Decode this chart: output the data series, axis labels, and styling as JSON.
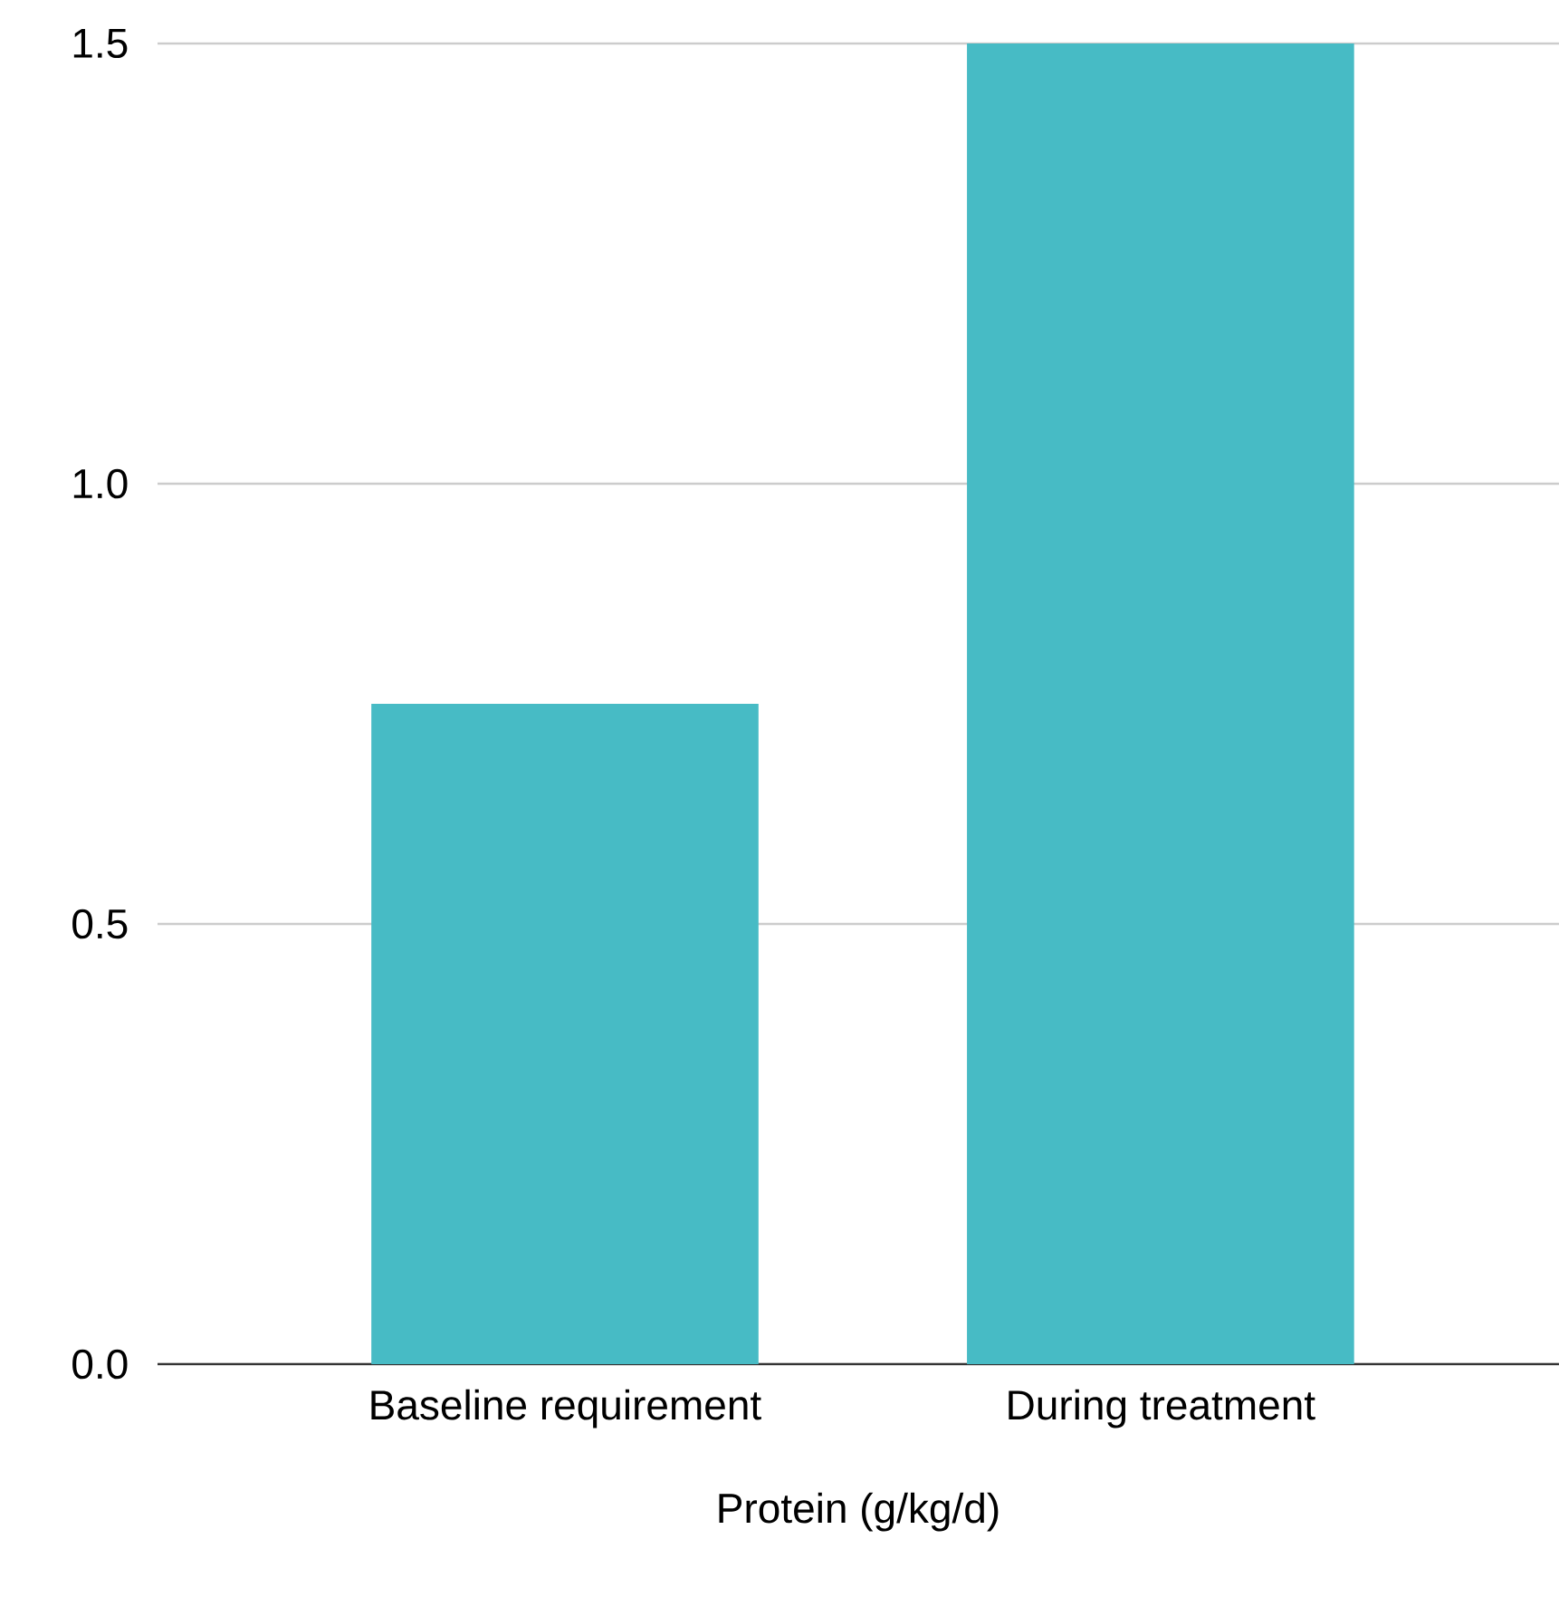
{
  "chart_data": {
    "type": "bar",
    "xlabel": "Protein (g/kg/d)",
    "categories": [
      "Baseline requirement",
      "During treatment"
    ],
    "values": [
      0.75,
      1.5
    ],
    "color": "#47bbc5",
    "ylim": [
      0,
      1.5
    ],
    "yticks": [
      {
        "value": 0,
        "label": "0.0"
      },
      {
        "value": 0.5,
        "label": "0.5"
      },
      {
        "value": 1,
        "label": "1.0"
      },
      {
        "value": 1.5,
        "label": "1.5"
      }
    ],
    "grid": "y"
  }
}
